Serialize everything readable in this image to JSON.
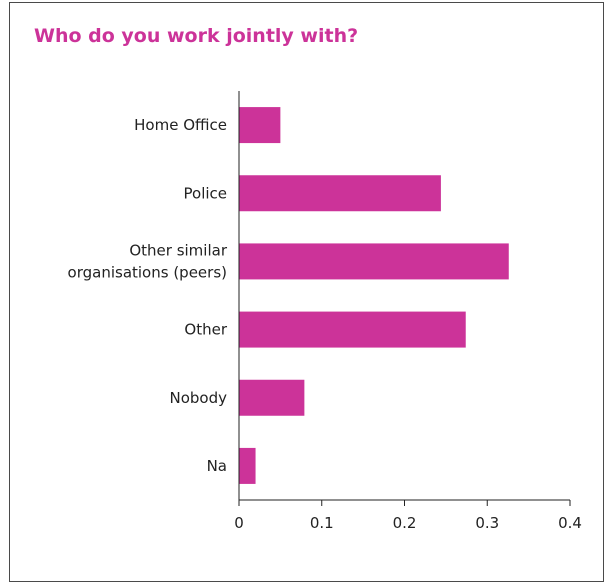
{
  "chart_data": {
    "type": "bar",
    "orientation": "horizontal",
    "title": "Who do you work jointly with?",
    "xlabel": "",
    "ylabel": "",
    "categories": [
      "Home Office",
      "Police",
      "Other similar organisations (peers)",
      "Other",
      "Nobody",
      "Na"
    ],
    "category_lines": [
      [
        "Home Office"
      ],
      [
        "Police"
      ],
      [
        "Other similar",
        "organisations (peers)"
      ],
      [
        "Other"
      ],
      [
        "Nobody"
      ],
      [
        "Na"
      ]
    ],
    "values": [
      0.05,
      0.244,
      0.326,
      0.274,
      0.079,
      0.02
    ],
    "xlim": [
      0,
      0.4
    ],
    "xticks": [
      0,
      0.1,
      0.2,
      0.3,
      0.4
    ],
    "xtick_labels": [
      "0",
      "0.1",
      "0.2",
      "0.3",
      "0.4"
    ],
    "grid": false,
    "legend": "none",
    "bar_color": "#cc3399",
    "title_color": "#cc3399"
  }
}
